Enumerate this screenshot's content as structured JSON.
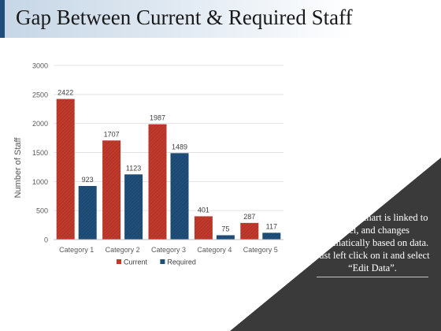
{
  "page": {
    "title": "Gap Between Current & Required Staff",
    "note_lines": [
      "This graph/chart is linked to",
      "excel, and changes",
      "automatically based on data.",
      "Just left click on it and select",
      "“Edit Data”."
    ]
  },
  "colors": {
    "current": "#c0392b",
    "required": "#1f4e79",
    "panel": "#3a3a3a",
    "title_accent": "#1f4e79"
  },
  "chart_data": {
    "type": "bar",
    "categories": [
      "Category 1",
      "Category 2",
      "Category 3",
      "Category 4",
      "Category 5"
    ],
    "series": [
      {
        "name": "Current",
        "values": [
          2422,
          1707,
          1987,
          401,
          287
        ]
      },
      {
        "name": "Required",
        "values": [
          923,
          1123,
          1489,
          75,
          117
        ]
      }
    ],
    "ylabel": "Number of Staff",
    "ylim": [
      0,
      3000
    ],
    "yticks": [
      0,
      500,
      1000,
      1500,
      2000,
      2500,
      3000
    ],
    "grid": true,
    "legend": "bottom"
  }
}
